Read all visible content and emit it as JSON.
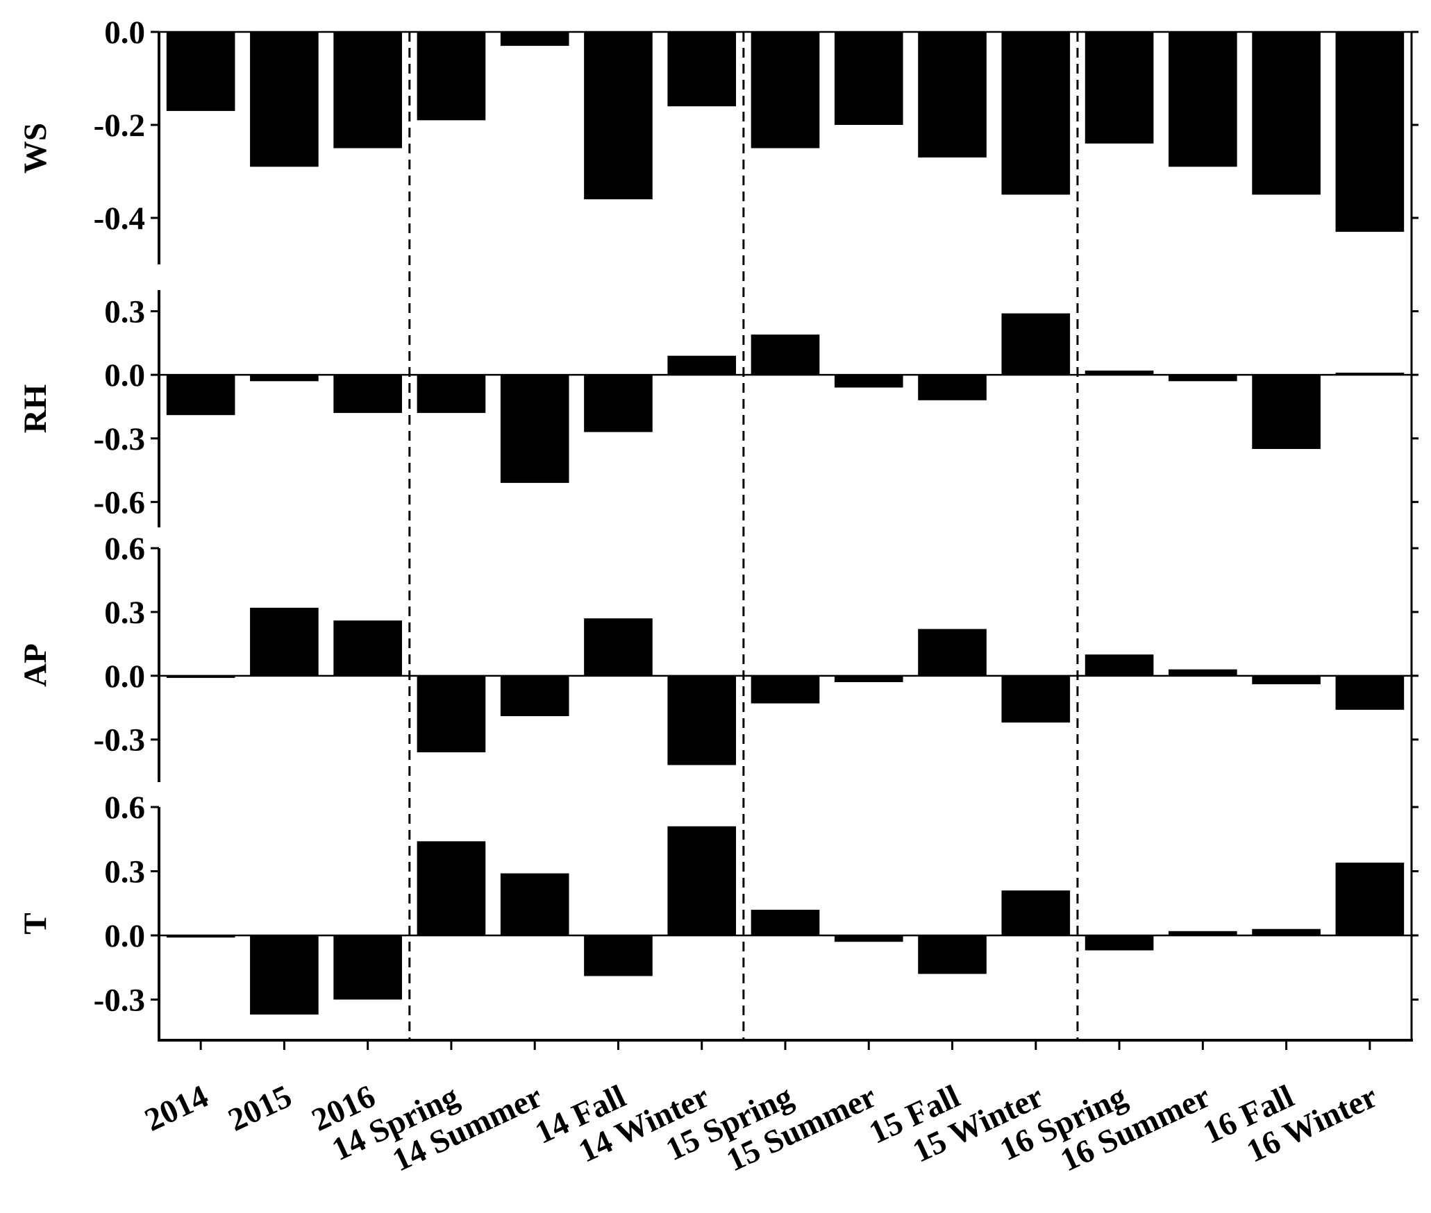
{
  "chart_data": [
    {
      "type": "bar",
      "ylabel": "WS",
      "color": "#000000",
      "values": [
        -0.17,
        -0.29,
        -0.25,
        -0.19,
        -0.03,
        -0.36,
        -0.16,
        -0.25,
        -0.2,
        -0.27,
        -0.35,
        -0.24,
        -0.29,
        -0.35,
        -0.43
      ],
      "ylim": [
        -0.5,
        0
      ],
      "yticks": [
        -0.4,
        -0.2,
        {
          "value": 0,
          "label": "0.0"
        }
      ]
    },
    {
      "type": "bar",
      "ylabel": "RH",
      "color": "#000000",
      "values": [
        -0.19,
        -0.03,
        -0.18,
        -0.18,
        -0.51,
        -0.27,
        0.09,
        0.19,
        -0.06,
        -0.12,
        0.29,
        0.02,
        -0.03,
        -0.35,
        0.01
      ],
      "ylim": [
        -0.72,
        0.4
      ],
      "yticks": [
        -0.6,
        -0.3,
        {
          "value": 0,
          "label": "0.0"
        },
        0.3
      ]
    },
    {
      "type": "bar",
      "ylabel": "AP",
      "color": "#000000",
      "values": [
        -0.01,
        0.32,
        0.26,
        -0.36,
        -0.19,
        0.27,
        -0.42,
        -0.13,
        -0.03,
        0.22,
        -0.22,
        0.1,
        0.03,
        -0.04,
        -0.16
      ],
      "ylim": [
        -0.5,
        0.6
      ],
      "yticks": [
        -0.3,
        {
          "value": 0,
          "label": "0.0"
        },
        0.3,
        0.6
      ]
    },
    {
      "type": "bar",
      "ylabel": "T",
      "color": "#000000",
      "categories": [
        "2014",
        "2015",
        "2016",
        "14 Spring",
        "14 Summer",
        "14 Fall",
        "14 Winter",
        "15 Spring",
        "15 Summer",
        "15 Fall",
        "15 Winter",
        "16 Spring",
        "16 Summer",
        "16 Fall",
        "16 Winter"
      ],
      "values": [
        -0.01,
        -0.37,
        -0.3,
        0.44,
        0.29,
        -0.19,
        0.51,
        0.12,
        -0.03,
        -0.18,
        0.21,
        -0.07,
        0.02,
        0.03,
        0.34
      ],
      "ylim": [
        -0.49,
        0.6
      ],
      "yticks": [
        -0.3,
        {
          "value": 0,
          "label": "0.0"
        },
        0.3,
        0.6
      ]
    }
  ]
}
